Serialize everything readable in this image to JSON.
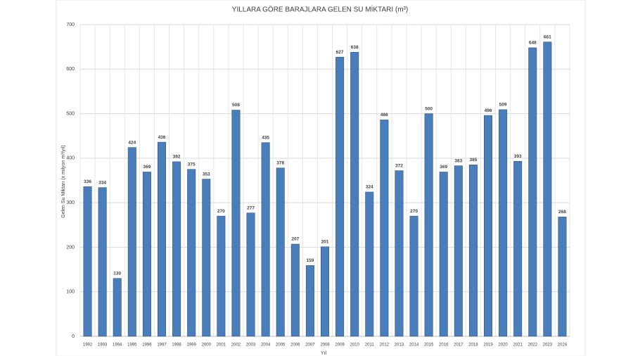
{
  "chart_data": {
    "type": "bar",
    "title": "YILLARA GÖRE BARAJLARA GELEN SU MİKTARI (m³)",
    "x_label": "Yıl",
    "y_label": "Gelen Su Miktarı (x milyon m³/yıl)",
    "categories": [
      "1992",
      "1993",
      "1994",
      "1995",
      "1996",
      "1997",
      "1998",
      "1999",
      "2000",
      "2001",
      "2002",
      "2003",
      "2004",
      "2005",
      "2006",
      "2007",
      "2008",
      "2009",
      "2010",
      "2011",
      "2012",
      "2013",
      "2014",
      "2015",
      "2016",
      "2017",
      "2018",
      "2019",
      "2020",
      "2021",
      "2022",
      "2023",
      "2024"
    ],
    "values": [
      336,
      334,
      130,
      424,
      369,
      436,
      392,
      375,
      353,
      270,
      508,
      277,
      435,
      378,
      207,
      159,
      201,
      627,
      638,
      324,
      486,
      372,
      270,
      500,
      369,
      383,
      385,
      496,
      509,
      393,
      648,
      661,
      268
    ],
    "color": "#4a7ebb",
    "ylim": [
      0,
      700
    ],
    "yticks": [
      0,
      100,
      200,
      300,
      400,
      500,
      600,
      700
    ],
    "grid": true
  }
}
